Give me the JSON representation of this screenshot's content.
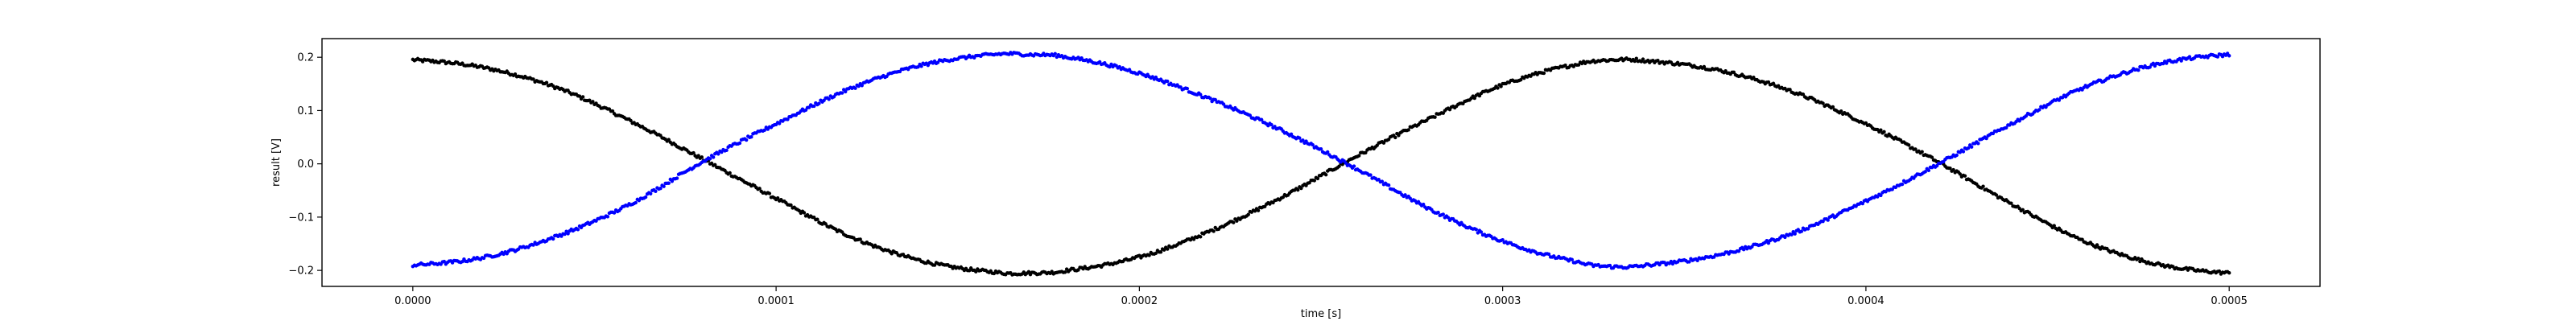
{
  "chart_data": {
    "type": "scatter",
    "title": "",
    "xlabel": "time [s]",
    "ylabel": "result [V]",
    "xlim": [
      -2.5e-05,
      0.000525
    ],
    "ylim": [
      -0.23,
      0.235
    ],
    "grid": false,
    "legend": "none",
    "x_ticks": [
      0,
      0.0001,
      0.0002,
      0.0003,
      0.0004,
      0.0005
    ],
    "x_tick_labels": [
      "0.0000",
      "0.0001",
      "0.0002",
      "0.0003",
      "0.0004",
      "0.0005"
    ],
    "y_ticks": [
      -0.2,
      -0.1,
      0.0,
      0.1,
      0.2
    ],
    "y_tick_labels": [
      "−0.2",
      "−0.1",
      "0.0",
      "0.1",
      "0.2"
    ],
    "series": [
      {
        "color": "#000000",
        "marker": "dot",
        "x": [
          0,
          2e-05,
          4e-05,
          6e-05,
          8e-05,
          0.0001,
          0.00012,
          0.00014,
          0.00016,
          0.00017,
          0.00018,
          0.0002,
          0.00022,
          0.00024,
          0.00026,
          0.00028,
          0.0003,
          0.00032,
          0.00033,
          0.00034,
          0.00036,
          0.00038,
          0.0004,
          0.00042,
          0.00044,
          0.00046,
          0.00048,
          0.0005
        ],
        "y": [
          0.195,
          0.18,
          0.142,
          0.08,
          0.008,
          -0.065,
          -0.135,
          -0.182,
          -0.203,
          -0.205,
          -0.2,
          -0.175,
          -0.125,
          -0.06,
          0.015,
          0.085,
          0.148,
          0.186,
          0.195,
          0.193,
          0.175,
          0.135,
          0.075,
          0.003,
          -0.075,
          -0.145,
          -0.188,
          -0.205
        ]
      },
      {
        "color": "#0000ff",
        "marker": "dot",
        "x": [
          0,
          2e-05,
          4e-05,
          6e-05,
          8e-05,
          0.0001,
          0.00012,
          0.00014,
          0.00016,
          0.00017,
          0.00018,
          0.0002,
          0.00022,
          0.00024,
          0.00026,
          0.00028,
          0.0003,
          0.00032,
          0.00033,
          0.00034,
          0.00036,
          0.00038,
          0.0004,
          0.00042,
          0.00044,
          0.00046,
          0.00048,
          0.0005
        ],
        "y": [
          -0.19,
          -0.175,
          -0.135,
          -0.075,
          0.005,
          0.075,
          0.14,
          0.185,
          0.205,
          0.205,
          0.2,
          0.17,
          0.12,
          0.06,
          -0.01,
          -0.085,
          -0.145,
          -0.183,
          -0.193,
          -0.19,
          -0.17,
          -0.13,
          -0.07,
          0.0,
          0.075,
          0.143,
          0.187,
          0.205
        ]
      }
    ]
  }
}
